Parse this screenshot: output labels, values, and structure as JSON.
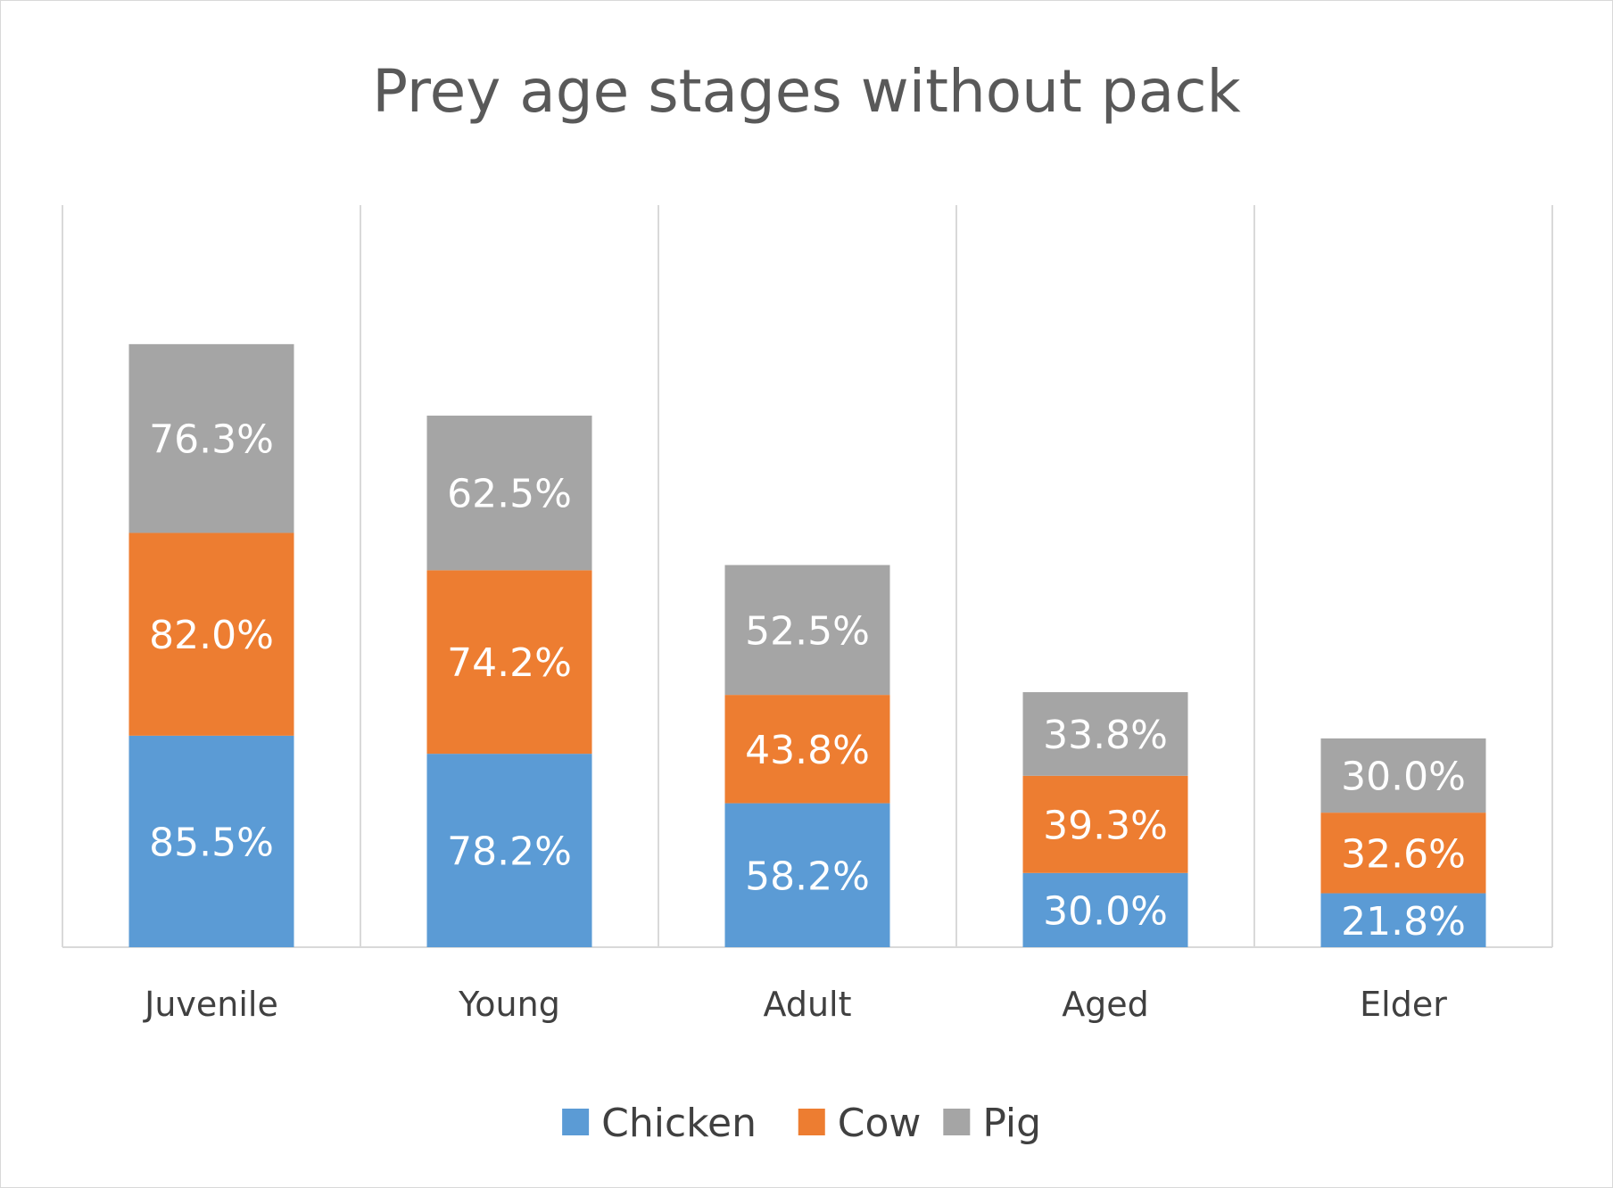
{
  "chart_data": {
    "type": "bar",
    "stacked": true,
    "title": "Prey age stages without pack",
    "xlabel": "",
    "ylabel": "",
    "categories": [
      "Juvenile",
      "Young",
      "Adult",
      "Aged",
      "Elder"
    ],
    "series": [
      {
        "name": "Chicken",
        "color": "#5b9bd5",
        "values": [
          85.5,
          78.2,
          58.2,
          30.0,
          21.8
        ],
        "labels": [
          "85.5%",
          "78.2%",
          "58.2%",
          "30.0%",
          "21.8%"
        ]
      },
      {
        "name": "Cow",
        "color": "#ed7d31",
        "values": [
          82.0,
          74.2,
          43.8,
          39.3,
          32.6
        ],
        "labels": [
          "82.0%",
          "74.2%",
          "43.8%",
          "39.3%",
          "32.6%"
        ]
      },
      {
        "name": "Pig",
        "color": "#a5a5a5",
        "values": [
          76.3,
          62.5,
          52.5,
          33.8,
          30.0
        ],
        "labels": [
          "76.3%",
          "62.5%",
          "52.5%",
          "33.8%",
          "30.0%"
        ]
      }
    ],
    "ylim": [
      0,
      300
    ],
    "y_axis_visible": false,
    "grid": "vertical category separators",
    "legend": "bottom",
    "colors": {
      "title": "#595959",
      "tick_label": "#404040",
      "separator": "#d9d9d9",
      "data_label": "#ffffff"
    }
  }
}
